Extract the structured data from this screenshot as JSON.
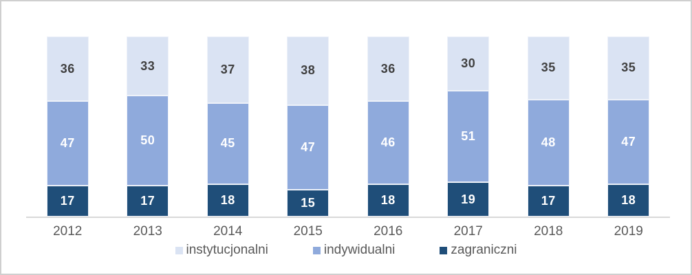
{
  "chart_data": {
    "type": "bar",
    "stacked": true,
    "orientation": "vertical",
    "title": "",
    "xlabel": "",
    "ylabel": "",
    "ylim": [
      0,
      100
    ],
    "grid": false,
    "legend_position": "bottom",
    "categories": [
      "2012",
      "2013",
      "2014",
      "2015",
      "2016",
      "2017",
      "2018",
      "2019"
    ],
    "series": [
      {
        "name": "instytucjonalni",
        "stack_position": "top",
        "color": "#dae3f3",
        "label_color": "#404040",
        "values": [
          36,
          33,
          37,
          38,
          36,
          30,
          35,
          35
        ]
      },
      {
        "name": "indywidualni",
        "stack_position": "middle",
        "color": "#8faadc",
        "label_color": "#ffffff",
        "values": [
          47,
          50,
          45,
          47,
          46,
          51,
          48,
          47
        ]
      },
      {
        "name": "zagraniczni",
        "stack_position": "bottom",
        "color": "#1f4e79",
        "label_color": "#ffffff",
        "values": [
          17,
          17,
          18,
          15,
          18,
          19,
          17,
          18
        ]
      }
    ]
  },
  "styles": {
    "frame_border_color": "#cfcfcf",
    "axis_line_color": "#d9d9d9",
    "axis_text_color": "#595959",
    "legend_text_color": "#595959",
    "background": "#ffffff"
  }
}
